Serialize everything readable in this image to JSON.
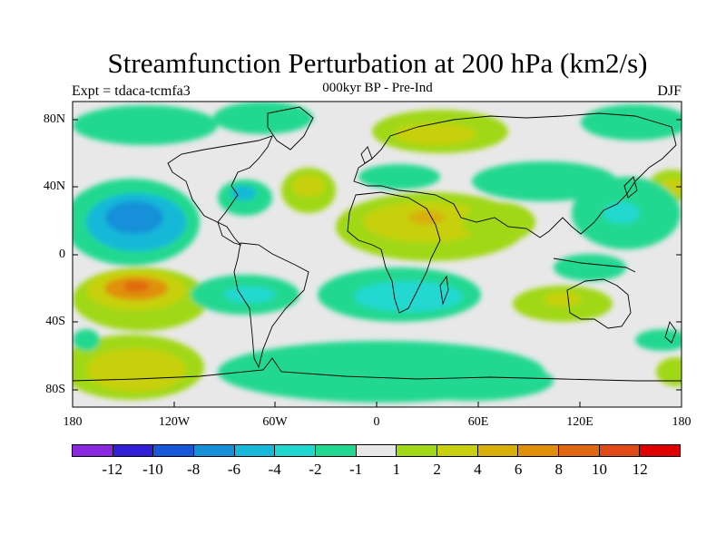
{
  "title": "Streamfunction Perturbation at 200 hPa (km2/s)",
  "left_label": "Expt = tdaca-tcmfa3",
  "center_label": "000kyr BP - Pre-Ind",
  "right_label": "DJF",
  "lat_labels": [
    "80N",
    "40N",
    "0",
    "40S",
    "80S"
  ],
  "lon_labels": [
    "180",
    "120W",
    "60W",
    "0",
    "60E",
    "120E",
    "180"
  ],
  "colorbar": {
    "colors": [
      "#8a28e0",
      "#3220d8",
      "#1858d8",
      "#1890d8",
      "#18b8d8",
      "#20d8d0",
      "#20d890",
      "#e8e8e8",
      "#a0d818",
      "#c8d010",
      "#d8b008",
      "#e09008",
      "#e06810",
      "#e04818",
      "#e00000"
    ],
    "labels": [
      "-12",
      "-10",
      "-8",
      "-6",
      "-4",
      "-2",
      "-1",
      "1",
      "2",
      "4",
      "6",
      "8",
      "10",
      "12"
    ]
  },
  "colors": {
    "land_outline": "#000000",
    "frame": "#000000"
  }
}
